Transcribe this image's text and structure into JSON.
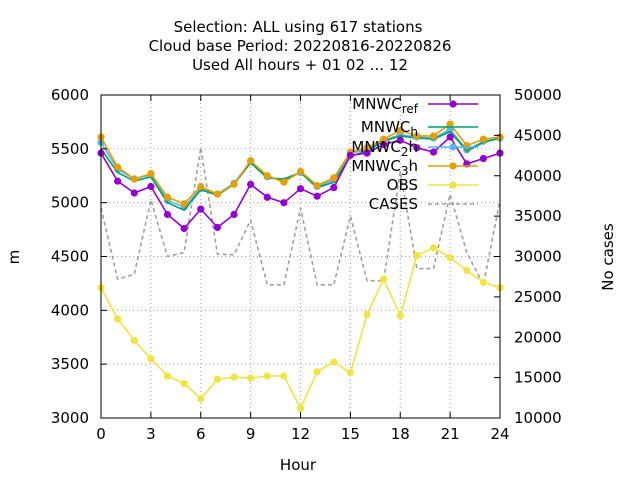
{
  "chart_data": {
    "type": "line",
    "title": [
      "Selection: ALL using   617 stations",
      "Cloud base   Period: 20220816-20220826",
      "Used  All hours + 01 02 ... 12"
    ],
    "xlabel": "Hour",
    "ylabel": "m",
    "y2label": "No cases",
    "xlim": [
      0,
      24
    ],
    "ylim": [
      3000,
      6000
    ],
    "y2lim": [
      10000,
      50000
    ],
    "xticks": [
      0,
      3,
      6,
      9,
      12,
      15,
      18,
      21,
      24
    ],
    "yticks": [
      3000,
      3500,
      4000,
      4500,
      5000,
      5500,
      6000
    ],
    "y2ticks": [
      10000,
      15000,
      20000,
      25000,
      30000,
      35000,
      40000,
      45000,
      50000
    ],
    "grid": true,
    "legend_position": "top-right",
    "x": [
      0,
      1,
      2,
      3,
      4,
      5,
      6,
      7,
      8,
      9,
      10,
      11,
      12,
      13,
      14,
      15,
      16,
      17,
      18,
      19,
      20,
      21,
      22,
      23,
      24
    ],
    "series": [
      {
        "name": "MNWC_ref",
        "legend_main": "MNWC",
        "legend_sub": "ref",
        "axis": "y",
        "color": "#9400d3",
        "marker": "circle",
        "values": [
          5460,
          5200,
          5090,
          5150,
          4890,
          4760,
          4940,
          4770,
          4890,
          5170,
          5050,
          5000,
          5130,
          5060,
          5140,
          5440,
          5460,
          5540,
          5580,
          5510,
          5470,
          5610,
          5360,
          5410,
          5460
        ]
      },
      {
        "name": "MNWC_h",
        "legend_main": "MNWC",
        "legend_sub": "h",
        "axis": "y",
        "color": "#009e73",
        "marker": "none",
        "values": [
          5500,
          5280,
          5200,
          5240,
          5000,
          4930,
          5120,
          5070,
          5170,
          5370,
          5230,
          5220,
          5280,
          5140,
          5190,
          5430,
          5480,
          5570,
          5620,
          5600,
          5590,
          5660,
          5480,
          5560,
          5600
        ]
      },
      {
        "name": "MNWC_2h",
        "legend_main": "MNWC",
        "legend_sub": "2",
        "legend_tail": "h",
        "axis": "y",
        "color": "#56b4e9",
        "marker": "circle",
        "values": [
          5560,
          5310,
          5220,
          5260,
          5020,
          4960,
          5130,
          5080,
          5180,
          5380,
          5240,
          5200,
          5280,
          5150,
          5210,
          5460,
          5490,
          5580,
          5630,
          5610,
          5600,
          5680,
          5490,
          5570,
          5600
        ]
      },
      {
        "name": "MNWC_3h",
        "legend_main": "MNWC",
        "legend_sub": "3",
        "legend_tail": "h",
        "axis": "y",
        "color": "#e69f00",
        "marker": "circle",
        "values": [
          5610,
          5330,
          5220,
          5270,
          5050,
          4990,
          5150,
          5080,
          5170,
          5390,
          5250,
          5190,
          5290,
          5160,
          5230,
          5470,
          5510,
          5590,
          5670,
          5620,
          5620,
          5730,
          5530,
          5590,
          5610
        ]
      },
      {
        "name": "OBS",
        "legend_main": "OBS",
        "axis": "y",
        "color": "#f0e442",
        "marker": "circle",
        "values": [
          4210,
          3920,
          3720,
          3550,
          3390,
          3320,
          3180,
          3360,
          3380,
          3370,
          3390,
          3390,
          3090,
          3430,
          3520,
          3420,
          3960,
          4290,
          3950,
          4510,
          4580,
          4490,
          4370,
          4260,
          4210
        ]
      },
      {
        "name": "CASES",
        "legend_main": "CASES",
        "axis": "y2",
        "color": "#a0a0a0",
        "marker": "none",
        "dashed": true,
        "values": [
          36000,
          27200,
          27800,
          37000,
          30000,
          30500,
          43500,
          30300,
          30200,
          34500,
          26500,
          26500,
          36000,
          26500,
          26500,
          35000,
          27000,
          27000,
          40500,
          28500,
          28500,
          37700,
          30500,
          26500,
          37000
        ]
      }
    ]
  }
}
